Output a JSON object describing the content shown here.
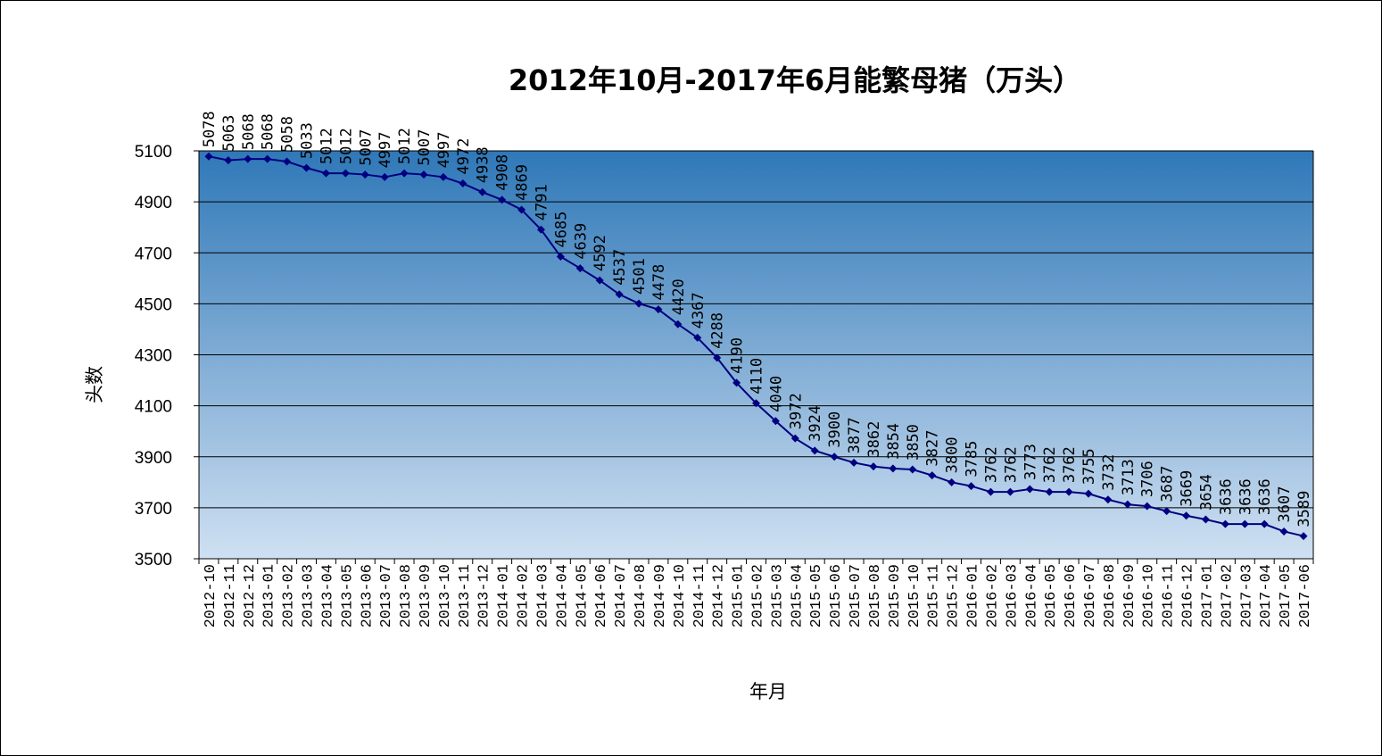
{
  "chart_data": {
    "type": "line",
    "title": "2012年10月-2017年6月能繁母猪（万头）",
    "xlabel": "年月",
    "ylabel": "头数",
    "ylim": [
      3500,
      5100
    ],
    "yticks": [
      3500,
      3700,
      3900,
      4100,
      4300,
      4500,
      4700,
      4900,
      5100
    ],
    "grid": true,
    "legend": "none",
    "colors": {
      "line": "#000080",
      "plot_top": "#2f78b8",
      "plot_bottom": "#cfe0f2",
      "grid": "#000000"
    },
    "categories": [
      "2012-10",
      "2012-11",
      "2012-12",
      "2013-01",
      "2013-02",
      "2013-03",
      "2013-04",
      "2013-05",
      "2013-06",
      "2013-07",
      "2013-08",
      "2013-09",
      "2013-10",
      "2013-11",
      "2013-12",
      "2014-01",
      "2014-02",
      "2014-03",
      "2014-04",
      "2014-05",
      "2014-06",
      "2014-07",
      "2014-08",
      "2014-09",
      "2014-10",
      "2014-11",
      "2014-12",
      "2015-01",
      "2015-02",
      "2015-03",
      "2015-04",
      "2015-05",
      "2015-06",
      "2015-07",
      "2015-08",
      "2015-09",
      "2015-10",
      "2015-11",
      "2015-12",
      "2016-01",
      "2016-02",
      "2016-03",
      "2016-04",
      "2016-05",
      "2016-06",
      "2016-07",
      "2016-08",
      "2016-09",
      "2016-10",
      "2016-11",
      "2016-12",
      "2017-01",
      "2017-02",
      "2017-03",
      "2017-04",
      "2017-05",
      "2017-06"
    ],
    "series": [
      {
        "values": [
          5078,
          5063,
          5068,
          5068,
          5058,
          5033,
          5012,
          5012,
          5007,
          4997,
          5012,
          5007,
          4997,
          4972,
          4938,
          4908,
          4869,
          4791,
          4685,
          4639,
          4592,
          4537,
          4501,
          4478,
          4420,
          4367,
          4288,
          4190,
          4110,
          4040,
          3972,
          3924,
          3900,
          3877,
          3862,
          3854,
          3850,
          3827,
          3800,
          3785,
          3762,
          3762,
          3773,
          3762,
          3762,
          3755,
          3732,
          3713,
          3706,
          3687,
          3669,
          3654,
          3636,
          3636,
          3636,
          3607,
          3589
        ]
      }
    ]
  }
}
